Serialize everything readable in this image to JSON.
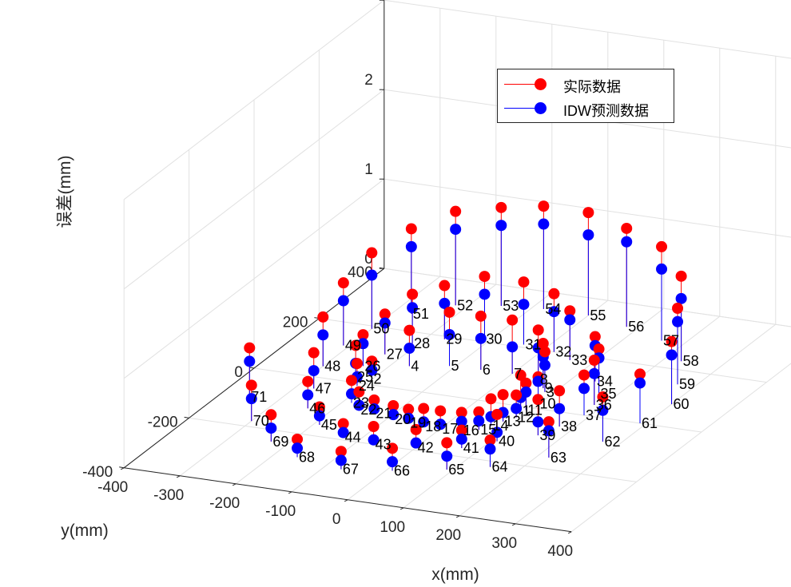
{
  "chart_data": {
    "type": "stem3",
    "xlabel": "x(mm)",
    "ylabel": "y(mm)",
    "zlabel": "误差(mm)",
    "xlim": [
      -400,
      400
    ],
    "ylim": [
      -400,
      400
    ],
    "zlim": [
      0,
      3
    ],
    "x_ticks": [
      "-400",
      "-300",
      "-200",
      "-100",
      "0",
      "100",
      "200",
      "300",
      "400"
    ],
    "y_ticks": [
      "-400",
      "-200",
      "0",
      "200",
      "400"
    ],
    "z_ticks": [
      "0",
      "1",
      "2",
      "3"
    ],
    "grid": true,
    "legend_position": "top-right",
    "colors": {
      "actual": "#ff0000",
      "idw": "#0000ff"
    },
    "series": [
      {
        "name": "实际数据",
        "color": "#ff0000"
      },
      {
        "name": "IDW预测数据",
        "color": "#0000ff"
      }
    ],
    "points": [
      {
        "id": "1",
        "x": 86,
        "y": -16,
        "actual": 0.4,
        "idw": 0.15
      },
      {
        "id": "2",
        "x": -201,
        "y": 20,
        "actual": 0.2,
        "idw": 0.1
      },
      {
        "id": "3",
        "x": 85,
        "y": 60,
        "actual": 0.45,
        "idw": 0.3
      },
      {
        "id": "4",
        "x": -170,
        "y": 82,
        "actual": 0.4,
        "idw": 0.2
      },
      {
        "id": "5",
        "x": -110,
        "y": 102,
        "actual": 0.6,
        "idw": 0.35
      },
      {
        "id": "6",
        "x": -55,
        "y": 104,
        "actual": 0.6,
        "idw": 0.35
      },
      {
        "id": "7",
        "x": 0,
        "y": 106,
        "actual": 0.6,
        "idw": 0.3
      },
      {
        "id": "8",
        "x": 50,
        "y": 100,
        "actual": 0.55,
        "idw": 0.35
      },
      {
        "id": "9",
        "x": 75,
        "y": 72,
        "actual": 0.5,
        "idw": 0.35
      },
      {
        "id": "10",
        "x": 98,
        "y": 17,
        "actual": 0.3,
        "idw": 0.25
      },
      {
        "id": "11",
        "x": 92,
        "y": -10,
        "actual": 0.3,
        "idw": 0.2
      },
      {
        "id": "12",
        "x": 92,
        "y": -40,
        "actual": 0.25,
        "idw": 0.1
      },
      {
        "id": "13",
        "x": 80,
        "y": -60,
        "actual": 0.3,
        "idw": 0.1
      },
      {
        "id": "14",
        "x": 70,
        "y": -80,
        "actual": 0.3,
        "idw": 0.1
      },
      {
        "id": "15",
        "x": 60,
        "y": -100,
        "actual": 0.2,
        "idw": 0.1
      },
      {
        "id": "16",
        "x": 35,
        "y": -110,
        "actual": 0.2,
        "idw": 0.1
      },
      {
        "id": "17",
        "x": 0,
        "y": -115,
        "actual": 0.2,
        "idw": 0.05
      },
      {
        "id": "18",
        "x": -30,
        "y": -115,
        "actual": 0.2,
        "idw": 0.05
      },
      {
        "id": "19",
        "x": -60,
        "y": -110,
        "actual": 0.15,
        "idw": 0.05
      },
      {
        "id": "20",
        "x": -90,
        "y": -105,
        "actual": 0.15,
        "idw": 0.05
      },
      {
        "id": "21",
        "x": -130,
        "y": -95,
        "actual": 0.15,
        "idw": 0.05
      },
      {
        "id": "22",
        "x": -160,
        "y": -90,
        "actual": 0.2,
        "idw": 0.05
      },
      {
        "id": "23",
        "x": -185,
        "y": -70,
        "actual": 0.25,
        "idw": 0.1
      },
      {
        "id": "24",
        "x": -210,
        "y": -10,
        "actual": 0.25,
        "idw": 0.1
      },
      {
        "id": "25",
        "x": -230,
        "y": 20,
        "actual": 0.35,
        "idw": 0.15
      },
      {
        "id": "26",
        "x": -240,
        "y": 60,
        "actual": 0.35,
        "idw": 0.25
      },
      {
        "id": "27",
        "x": -230,
        "y": 110,
        "actual": 0.45,
        "idw": 0.35
      },
      {
        "id": "28",
        "x": -210,
        "y": 160,
        "actual": 0.55,
        "idw": 0.4
      },
      {
        "id": "29",
        "x": -170,
        "y": 190,
        "actual": 0.6,
        "idw": 0.4
      },
      {
        "id": "30",
        "x": -110,
        "y": 210,
        "actual": 0.7,
        "idw": 0.5
      },
      {
        "id": "31",
        "x": -40,
        "y": 210,
        "actual": 0.7,
        "idw": 0.45
      },
      {
        "id": "32",
        "x": 20,
        "y": 200,
        "actual": 0.65,
        "idw": 0.45
      },
      {
        "id": "33",
        "x": 60,
        "y": 180,
        "actual": 0.55,
        "idw": 0.45
      },
      {
        "id": "34",
        "x": 140,
        "y": 120,
        "actual": 0.5,
        "idw": 0.4
      },
      {
        "id": "35",
        "x": 170,
        "y": 80,
        "actual": 0.5,
        "idw": 0.4
      },
      {
        "id": "36",
        "x": 185,
        "y": 40,
        "actual": 0.5,
        "idw": 0.35
      },
      {
        "id": "37",
        "x": 190,
        "y": 0,
        "actual": 0.45,
        "idw": 0.3
      },
      {
        "id": "38",
        "x": 175,
        "y": -50,
        "actual": 0.4,
        "idw": 0.2
      },
      {
        "id": "39",
        "x": 160,
        "y": -90,
        "actual": 0.4,
        "idw": 0.15
      },
      {
        "id": "40",
        "x": 110,
        "y": -130,
        "actual": 0.3,
        "idw": 0.1
      },
      {
        "id": "41",
        "x": 70,
        "y": -170,
        "actual": 0.2,
        "idw": 0.1
      },
      {
        "id": "42",
        "x": 0,
        "y": -190,
        "actual": 0.2,
        "idw": 0.05
      },
      {
        "id": "43",
        "x": -70,
        "y": -200,
        "actual": 0.2,
        "idw": 0.05
      },
      {
        "id": "44",
        "x": -130,
        "y": -190,
        "actual": 0.15,
        "idw": 0.05
      },
      {
        "id": "45",
        "x": -190,
        "y": -160,
        "actual": 0.2,
        "idw": 0.1
      },
      {
        "id": "46",
        "x": -240,
        "y": -110,
        "actual": 0.3,
        "idw": 0.15
      },
      {
        "id": "47",
        "x": -270,
        "y": -40,
        "actual": 0.4,
        "idw": 0.2
      },
      {
        "id": "48",
        "x": -300,
        "y": 40,
        "actual": 0.55,
        "idw": 0.35
      },
      {
        "id": "49",
        "x": -310,
        "y": 120,
        "actual": 0.7,
        "idw": 0.5
      },
      {
        "id": "50",
        "x": -300,
        "y": 190,
        "actual": 0.85,
        "idw": 0.6
      },
      {
        "id": "51",
        "x": -270,
        "y": 260,
        "actual": 0.95,
        "idw": 0.75
      },
      {
        "id": "52",
        "x": -220,
        "y": 310,
        "actual": 1.05,
        "idw": 0.85
      },
      {
        "id": "53",
        "x": -150,
        "y": 330,
        "actual": 1.1,
        "idw": 0.9
      },
      {
        "id": "54",
        "x": -80,
        "y": 340,
        "actual": 1.15,
        "idw": 0.95
      },
      {
        "id": "55",
        "x": 0,
        "y": 340,
        "actual": 1.15,
        "idw": 0.9
      },
      {
        "id": "56",
        "x": 80,
        "y": 320,
        "actual": 1.1,
        "idw": 0.95
      },
      {
        "id": "57",
        "x": 160,
        "y": 290,
        "actual": 1.05,
        "idw": 0.8
      },
      {
        "id": "58",
        "x": 230,
        "y": 230,
        "actual": 0.95,
        "idw": 0.7
      },
      {
        "id": "59",
        "x": 270,
        "y": 150,
        "actual": 0.85,
        "idw": 0.7
      },
      {
        "id": "60",
        "x": 300,
        "y": 80,
        "actual": 0.7,
        "idw": 0.55
      },
      {
        "id": "61",
        "x": 290,
        "y": 0,
        "actual": 0.55,
        "idw": 0.45
      },
      {
        "id": "62",
        "x": 270,
        "y": -80,
        "actual": 0.5,
        "idw": 0.35
      },
      {
        "id": "63",
        "x": 220,
        "y": -160,
        "actual": 0.4,
        "idw": 0.3
      },
      {
        "id": "64",
        "x": 150,
        "y": -220,
        "actual": 0.3,
        "idw": 0.2
      },
      {
        "id": "65",
        "x": 90,
        "y": -250,
        "actual": 0.3,
        "idw": 0.15
      },
      {
        "id": "66",
        "x": 10,
        "y": -280,
        "actual": 0.25,
        "idw": 0.1
      },
      {
        "id": "67",
        "x": -70,
        "y": -300,
        "actual": 0.2,
        "idw": 0.1
      },
      {
        "id": "68",
        "x": -160,
        "y": -280,
        "actual": 0.2,
        "idw": 0.1
      },
      {
        "id": "69",
        "x": -230,
        "y": -240,
        "actual": 0.3,
        "idw": 0.15
      },
      {
        "id": "70",
        "x": -300,
        "y": -180,
        "actual": 0.4,
        "idw": 0.25
      },
      {
        "id": "71",
        "x": -350,
        "y": -100,
        "actual": 0.55,
        "idw": 0.4
      }
    ]
  }
}
